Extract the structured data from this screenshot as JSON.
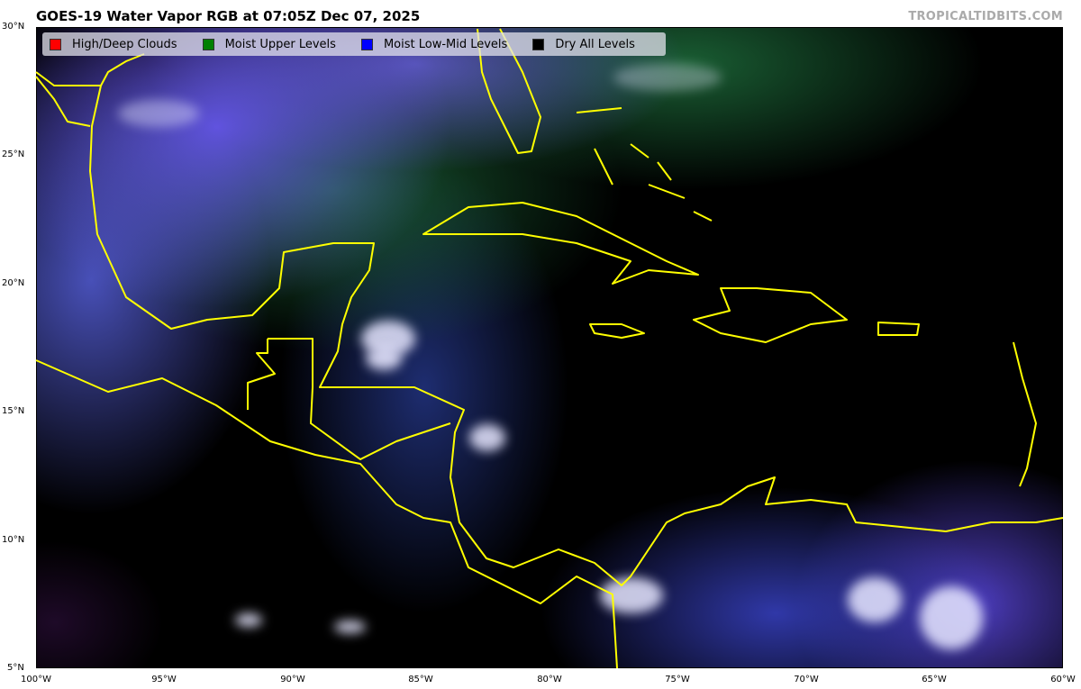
{
  "title": "GOES-19 Water Vapor RGB at 07:05Z Dec 07, 2025",
  "brand": "TROPICALTIDBITS.COM",
  "legend": [
    {
      "label": "High/Deep Clouds",
      "color": "#ff0000"
    },
    {
      "label": "Moist Upper Levels",
      "color": "#008000"
    },
    {
      "label": "Moist Low-Mid Levels",
      "color": "#0000ff"
    },
    {
      "label": "Dry All Levels",
      "color": "#000000"
    }
  ],
  "lat_ticks": [
    "30°N",
    "25°N",
    "20°N",
    "15°N",
    "10°N",
    "5°N"
  ],
  "lon_ticks": [
    "100°W",
    "95°W",
    "90°W",
    "85°W",
    "80°W",
    "75°W",
    "70°W",
    "65°W",
    "60°W"
  ],
  "extent": {
    "lon": [
      -100,
      -60
    ],
    "lat": [
      5,
      30
    ]
  },
  "coastline_color": "#ffff00"
}
